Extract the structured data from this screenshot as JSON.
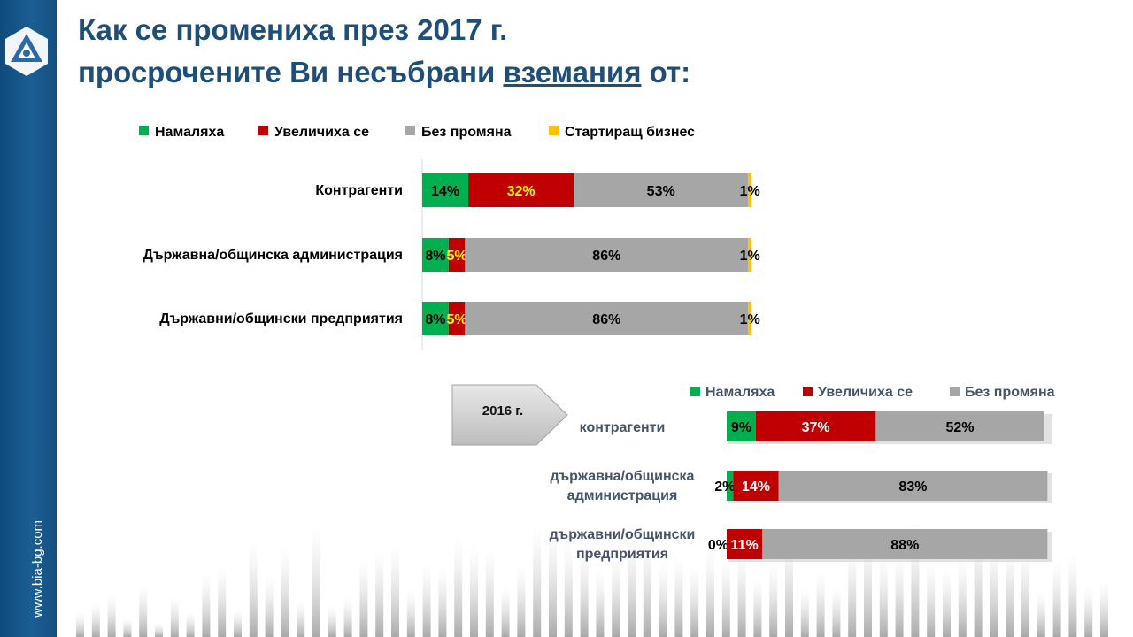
{
  "brand": {
    "url": "www.bia-bg.com"
  },
  "title": {
    "line1": "Как се промениха през 2017 г.",
    "line2a": "просрочените Ви несъбрани ",
    "line2b": "вземания",
    "line2c": " от:"
  },
  "callout": {
    "label": "2016 г."
  },
  "colors": {
    "green": "#00b050",
    "red": "#c00000",
    "gray": "#a6a6a6",
    "yellow": "#ffc000",
    "title": "#1f4e79"
  },
  "chart_data": [
    {
      "type": "bar",
      "orientation": "horizontal",
      "stacked": true,
      "legend_position": "top",
      "categories": [
        "Контрагенти",
        "Държавна/общинска  администрация",
        "Държавни/общински  предприятия"
      ],
      "series": [
        {
          "name": "Намаляха",
          "values": [
            14,
            8,
            8
          ],
          "labels": [
            "14%",
            "8%",
            "8%"
          ]
        },
        {
          "name": "Увеличиха се",
          "values": [
            32,
            5,
            5
          ],
          "labels": [
            "32%",
            "5%",
            "5%"
          ]
        },
        {
          "name": "Без промяна",
          "values": [
            53,
            86,
            86
          ],
          "labels": [
            "53%",
            "86%",
            "86%"
          ]
        },
        {
          "name": "Стартиращ  бизнес",
          "values": [
            1,
            1,
            1
          ],
          "labels": [
            "1%",
            "1%",
            "1%"
          ]
        }
      ],
      "xlim": [
        0,
        100
      ]
    },
    {
      "type": "bar",
      "orientation": "horizontal",
      "stacked": true,
      "legend_position": "top-right",
      "categories": [
        [
          "контрагенти"
        ],
        [
          "държавна/общинска",
          "администрация"
        ],
        [
          "държавни/общински",
          "предприятия"
        ]
      ],
      "series": [
        {
          "name": "Намаляха",
          "values": [
            9,
            2,
            0
          ],
          "labels": [
            "9%",
            "2%",
            "0%"
          ]
        },
        {
          "name": "Увеличиха се",
          "values": [
            37,
            14,
            11
          ],
          "labels": [
            "37%",
            "14%",
            "11%"
          ]
        },
        {
          "name": "Без промяна",
          "values": [
            52,
            83,
            88
          ],
          "labels": [
            "52%",
            "83%",
            "88%"
          ]
        }
      ],
      "xlim": [
        0,
        100
      ]
    }
  ]
}
